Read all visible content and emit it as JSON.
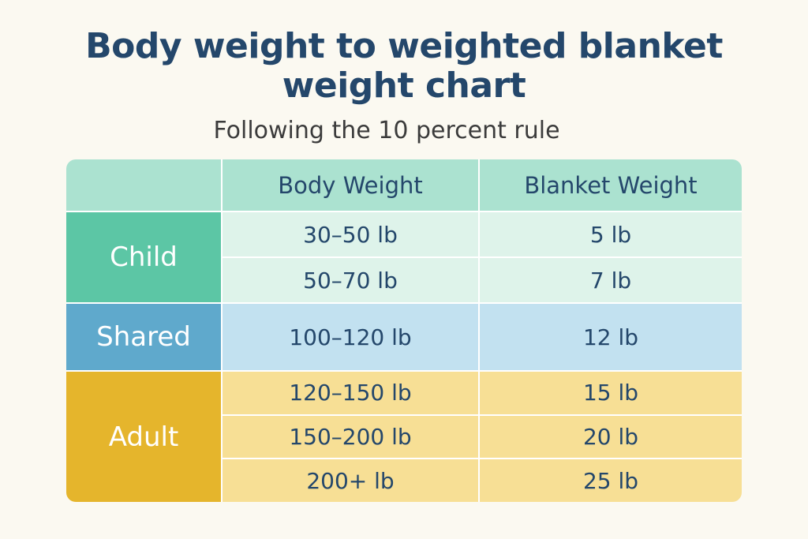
{
  "title_line1": "Body weight to weighted blanket",
  "title_line2": "weight chart",
  "subtitle": "Following the 10 percent rule",
  "chart_data": {
    "type": "table",
    "columns": [
      "",
      "Body Weight",
      "Blanket Weight"
    ],
    "groups": [
      {
        "name": "Child",
        "color": "#5cc6a5",
        "row_color": "#def3ea",
        "rows": [
          [
            "30–50 lb",
            "5 lb"
          ],
          [
            "50–70 lb",
            "7 lb"
          ]
        ]
      },
      {
        "name": "Shared",
        "color": "#5fa9cc",
        "row_color": "#c2e1f0",
        "rows": [
          [
            "100–120 lb",
            "12 lb"
          ]
        ]
      },
      {
        "name": "Adult",
        "color": "#e5b52c",
        "row_color": "#f7df95",
        "rows": [
          [
            "120–150 lb",
            "15 lb"
          ],
          [
            "150–200 lb",
            "20 lb"
          ],
          [
            "200+ lb",
            "25 lb"
          ]
        ]
      }
    ]
  }
}
